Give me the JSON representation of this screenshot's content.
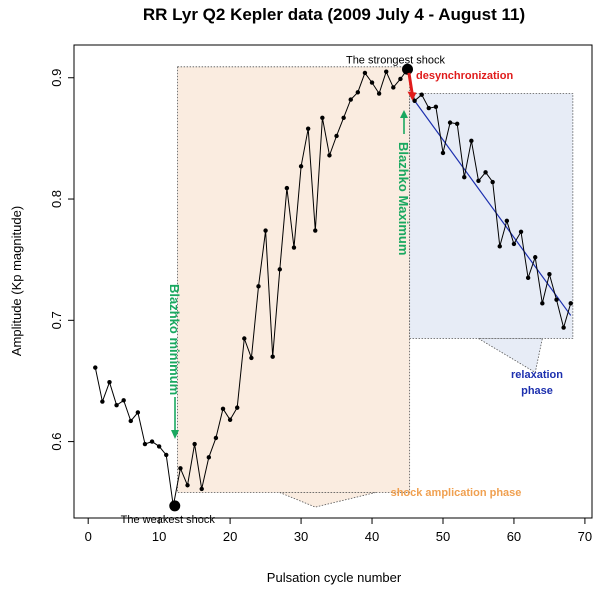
{
  "chart_data": {
    "type": "line",
    "title": "RR Lyr Q2 Kepler data (2009 July 4 - August 11)",
    "xlabel": "Pulsation cycle number",
    "ylabel": "Amplitude (Kp magnitude)",
    "xlim": [
      -2,
      71
    ],
    "ylim": [
      0.537,
      0.927
    ],
    "xticks": [
      0,
      10,
      20,
      30,
      40,
      50,
      60,
      70
    ],
    "yticks": [
      0.6,
      0.7,
      0.8,
      0.9
    ],
    "x": [
      1,
      2,
      3,
      4,
      5,
      6,
      7,
      8,
      9,
      10,
      11,
      12,
      13,
      14,
      15,
      16,
      17,
      18,
      19,
      20,
      21,
      22,
      23,
      24,
      25,
      26,
      27,
      28,
      29,
      30,
      31,
      32,
      33,
      34,
      35,
      36,
      37,
      38,
      39,
      40,
      41,
      42,
      43,
      44,
      45,
      46,
      47,
      48,
      49,
      50,
      51,
      52,
      53,
      54,
      55,
      56,
      57,
      58,
      59,
      60,
      61,
      62,
      63,
      64,
      65,
      66,
      67,
      68
    ],
    "values": [
      0.661,
      0.633,
      0.649,
      0.63,
      0.634,
      0.617,
      0.624,
      0.598,
      0.6,
      0.596,
      0.589,
      0.547,
      0.578,
      0.564,
      0.598,
      0.561,
      0.587,
      0.603,
      0.627,
      0.618,
      0.628,
      0.685,
      0.669,
      0.728,
      0.774,
      0.67,
      0.742,
      0.809,
      0.76,
      0.827,
      0.858,
      0.774,
      0.867,
      0.836,
      0.852,
      0.867,
      0.882,
      0.888,
      0.904,
      0.896,
      0.887,
      0.905,
      0.892,
      0.899,
      0.907,
      0.881,
      0.886,
      0.875,
      0.876,
      0.838,
      0.863,
      0.862,
      0.818,
      0.848,
      0.815,
      0.822,
      0.814,
      0.761,
      0.782,
      0.763,
      0.773,
      0.735,
      0.752,
      0.714,
      0.738,
      0.717,
      0.694,
      0.714
    ],
    "trend_line": {
      "x": [
        46,
        68
      ],
      "values": [
        0.881,
        0.704
      ]
    },
    "special_points": [
      {
        "x": 12.2,
        "value": 0.547,
        "label": "The weakest shock"
      },
      {
        "x": 45,
        "value": 0.907,
        "label": "The strongest shock"
      }
    ],
    "annotations": {
      "amplification_phase": "shock amplication phase",
      "relaxation_phase_line1": "relaxation",
      "relaxation_phase_line2": "phase",
      "desync": "desynchronization",
      "blazhko_min": "Blazhko minimum",
      "blazhko_max": "Blazhko Maximum"
    },
    "colors": {
      "data": "#000000",
      "trend": "#1c2fae",
      "amplification_fill": "#faece0",
      "relaxation_fill": "#e7ecf6",
      "amplification_text": "#f0a050",
      "relaxation_text": "#1c2fae",
      "desync": "#e01b1b",
      "blazhko": "#1aa860"
    }
  }
}
